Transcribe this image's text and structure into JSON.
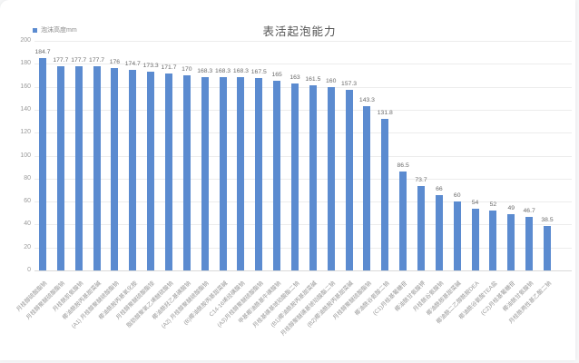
{
  "title": "表活起泡能力",
  "legend": {
    "label": "泡沫高度mm",
    "color": "#5b8bd0"
  },
  "colors": {
    "bar": "#5b8bd0",
    "grid": "#ececec",
    "axis": "#d9d9d9",
    "tick_text": "#9a9a9a",
    "value_text": "#6b6b6b",
    "category_text": "#999999",
    "title_text": "#555555",
    "background": "#ffffff"
  },
  "chart_data": {
    "type": "bar",
    "title": "表活起泡能力",
    "ylabel": "泡沫高度mm",
    "xlabel": "",
    "ylim": [
      0,
      200
    ],
    "ytick_step": 20,
    "yticks": [
      0,
      20,
      40,
      60,
      80,
      100,
      120,
      140,
      160,
      180,
      200
    ],
    "grid": true,
    "legend_position": "top-left",
    "bar_color": "#5b8bd0",
    "categories": [
      "月桂醇硫酸酯钠",
      "月桂醇聚醚硫酸酯钠",
      "月桂酰肌氨酸钠",
      "椰油酰胺丙基甜菜碱",
      "(A1) 月桂醇聚醚硫酸酯钠",
      "椰油酰胺丙基氧化胺",
      "月桂醇聚醚硫酸酯铵",
      "脂肪醇聚氧乙烯醚硫酸钠",
      "椰油酰羟乙基磺酸钠",
      "(A2) 月桂醇聚醚硫酸酯钠",
      "(B)椰油酰胺丙基甜菜碱",
      "C14-16烯烃磺酸钠",
      "(A3)月桂醇聚醚硫酸酯钠",
      "甲基椰油酰基牛磺酸钠",
      "月桂基磺基琥珀酸酯二钠",
      "(B1)椰油酰胺丙基甜菜碱",
      "月桂醇聚醚磺基琥珀酸酯二钠",
      "(B2)椰油酰胺丙基甜菜碱",
      "月桂醇聚醚硫酸酯钠",
      "椰油酰谷氨酸二钠",
      "(C1)月桂基葡糖苷",
      "椰油酰甘氨酸钾",
      "月桂酰谷氨酸钠",
      "椰油酰胺基甜菜碱",
      "椰油酰二乙醇酰胺DEA",
      "椰油酰谷氨酸TEA盐",
      "(C2)月桂基葡糖苷",
      "椰油酰甘氨酸钠",
      "月桂酰两性基乙酸二钠"
    ],
    "values": [
      184.7,
      177.7,
      177.7,
      177.7,
      176,
      174.7,
      173.3,
      171.7,
      170,
      168.3,
      168.3,
      168.3,
      167.5,
      165,
      163,
      161.5,
      160,
      157.3,
      143.3,
      131.8,
      86.5,
      73.7,
      66,
      60,
      54,
      52,
      49,
      46.7,
      38.5
    ]
  }
}
